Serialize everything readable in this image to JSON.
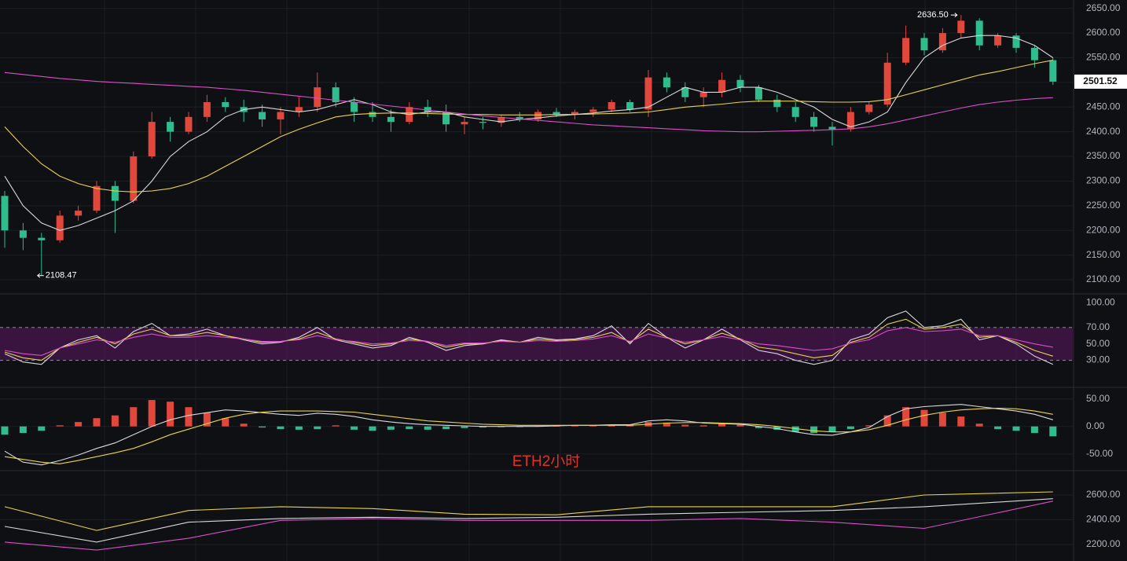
{
  "chart_data": [
    {
      "type": "candlestick",
      "up_color": "#e2473b",
      "down_color": "#2fbd8e",
      "grid": true,
      "ylim": [
        2073,
        2667
      ],
      "yticks": [
        {
          "value": 2650,
          "label": "2650.00"
        },
        {
          "value": 2600,
          "label": "2600.00"
        },
        {
          "value": 2550,
          "label": "2550.00"
        },
        {
          "value": 2500,
          "label": "2500.00"
        },
        {
          "value": 2450,
          "label": "2450.00"
        },
        {
          "value": 2400,
          "label": "2400.00"
        },
        {
          "value": 2350,
          "label": "2350.00"
        },
        {
          "value": 2300,
          "label": "2300.00"
        },
        {
          "value": 2250,
          "label": "2250.00"
        },
        {
          "value": 2200,
          "label": "2200.00"
        },
        {
          "value": 2150,
          "label": "2150.00"
        },
        {
          "value": 2100,
          "label": "2100.00"
        }
      ],
      "candles": [
        [
          2270,
          2280,
          2165,
          2200
        ],
        [
          2200,
          2215,
          2160,
          2185
        ],
        [
          2185,
          2195,
          2108.47,
          2180
        ],
        [
          2180,
          2240,
          2175,
          2230
        ],
        [
          2230,
          2250,
          2220,
          2240
        ],
        [
          2240,
          2300,
          2235,
          2290
        ],
        [
          2290,
          2300,
          2195,
          2260
        ],
        [
          2260,
          2360,
          2255,
          2350
        ],
        [
          2350,
          2440,
          2345,
          2420
        ],
        [
          2420,
          2430,
          2380,
          2400
        ],
        [
          2400,
          2440,
          2395,
          2430
        ],
        [
          2430,
          2475,
          2420,
          2460
        ],
        [
          2460,
          2470,
          2440,
          2450
        ],
        [
          2450,
          2465,
          2420,
          2440
        ],
        [
          2440,
          2455,
          2410,
          2425
        ],
        [
          2425,
          2450,
          2395,
          2440
        ],
        [
          2440,
          2470,
          2430,
          2450
        ],
        [
          2450,
          2520,
          2440,
          2490
        ],
        [
          2490,
          2500,
          2450,
          2460
        ],
        [
          2460,
          2470,
          2420,
          2440
        ],
        [
          2440,
          2460,
          2420,
          2430
        ],
        [
          2430,
          2445,
          2400,
          2420
        ],
        [
          2420,
          2460,
          2415,
          2450
        ],
        [
          2450,
          2465,
          2430,
          2440
        ],
        [
          2440,
          2455,
          2400,
          2415
        ],
        [
          2415,
          2430,
          2395,
          2420
        ],
        [
          2420,
          2430,
          2405,
          2418
        ],
        [
          2418,
          2435,
          2410,
          2430
        ],
        [
          2430,
          2440,
          2420,
          2425
        ],
        [
          2425,
          2445,
          2420,
          2440
        ],
        [
          2440,
          2448,
          2430,
          2435
        ],
        [
          2435,
          2445,
          2425,
          2440
        ],
        [
          2440,
          2450,
          2430,
          2445
        ],
        [
          2445,
          2465,
          2440,
          2460
        ],
        [
          2460,
          2465,
          2440,
          2445
        ],
        [
          2445,
          2525,
          2430,
          2510
        ],
        [
          2510,
          2520,
          2480,
          2490
        ],
        [
          2490,
          2500,
          2460,
          2470
        ],
        [
          2470,
          2490,
          2450,
          2480
        ],
        [
          2480,
          2520,
          2470,
          2505
        ],
        [
          2505,
          2515,
          2480,
          2490
        ],
        [
          2490,
          2495,
          2460,
          2465
        ],
        [
          2465,
          2475,
          2440,
          2450
        ],
        [
          2450,
          2460,
          2420,
          2430
        ],
        [
          2430,
          2440,
          2400,
          2410
        ],
        [
          2410,
          2420,
          2372,
          2405
        ],
        [
          2405,
          2450,
          2400,
          2440
        ],
        [
          2440,
          2460,
          2435,
          2455
        ],
        [
          2455,
          2560,
          2450,
          2540
        ],
        [
          2540,
          2615,
          2535,
          2590
        ],
        [
          2590,
          2600,
          2555,
          2565
        ],
        [
          2565,
          2610,
          2560,
          2600
        ],
        [
          2600,
          2636.5,
          2590,
          2625
        ],
        [
          2625,
          2630,
          2565,
          2575
        ],
        [
          2575,
          2600,
          2570,
          2595
        ],
        [
          2595,
          2600,
          2560,
          2570
        ],
        [
          2570,
          2575,
          2530,
          2545
        ],
        [
          2545,
          2550,
          2495,
          2501.52
        ]
      ],
      "series": [
        {
          "color": "#d9d9d9",
          "values": [
            2310,
            2250,
            2215,
            2200,
            2210,
            2225,
            2240,
            2260,
            2300,
            2350,
            2380,
            2400,
            2430,
            2445,
            2450,
            2445,
            2440,
            2445,
            2455,
            2465,
            2455,
            2440,
            2435,
            2440,
            2440,
            2430,
            2425,
            2420,
            2425,
            2428,
            2432,
            2435,
            2438,
            2442,
            2445,
            2450,
            2470,
            2490,
            2480,
            2480,
            2490,
            2490,
            2480,
            2465,
            2450,
            2425,
            2410,
            2420,
            2440,
            2500,
            2550,
            2575,
            2590,
            2595,
            2595,
            2590,
            2575,
            2550
          ]
        },
        {
          "color": "#e8d44d",
          "values": [
            2410,
            2370,
            2335,
            2310,
            2295,
            2285,
            2280,
            2278,
            2280,
            2285,
            2295,
            2310,
            2330,
            2350,
            2370,
            2390,
            2405,
            2418,
            2430,
            2435,
            2437,
            2438,
            2438,
            2437,
            2436,
            2435,
            2435,
            2434,
            2434,
            2434,
            2435,
            2435,
            2436,
            2437,
            2438,
            2440,
            2445,
            2450,
            2453,
            2456,
            2460,
            2462,
            2462,
            2462,
            2461,
            2460,
            2460,
            2461,
            2465,
            2475,
            2485,
            2495,
            2505,
            2515,
            2522,
            2530,
            2538,
            2545
          ]
        },
        {
          "color": "#d94fc7",
          "values": [
            2520,
            2516,
            2512,
            2508,
            2505,
            2502,
            2500,
            2498,
            2496,
            2494,
            2492,
            2490,
            2487,
            2484,
            2480,
            2476,
            2472,
            2468,
            2464,
            2460,
            2456,
            2452,
            2448,
            2444,
            2440,
            2436,
            2432,
            2429,
            2426,
            2423,
            2420,
            2417,
            2414,
            2412,
            2410,
            2408,
            2406,
            2404,
            2402,
            2401,
            2400,
            2400,
            2401,
            2402,
            2403,
            2404,
            2406,
            2410,
            2416,
            2424,
            2432,
            2440,
            2448,
            2455,
            2460,
            2464,
            2467,
            2469
          ]
        }
      ],
      "annotations": [
        {
          "x": 52,
          "value": 2636.5,
          "label": "2636.50"
        },
        {
          "x": 2,
          "value": 2108.47,
          "label": "2108.47"
        }
      ],
      "last_price": 2501.52
    },
    {
      "type": "line",
      "grid": false,
      "ylim": [
        -2,
        110
      ],
      "band": [
        30,
        70
      ],
      "band_color": "#6a1b73",
      "yticks": [
        {
          "value": 100,
          "label": "100.00"
        },
        {
          "value": 70,
          "label": "70.00"
        },
        {
          "value": 50,
          "label": "50.00"
        },
        {
          "value": 30,
          "label": "30.00"
        }
      ],
      "series": [
        {
          "color": "#d9d9d9",
          "values": [
            38,
            28,
            25,
            45,
            55,
            60,
            45,
            65,
            75,
            60,
            62,
            68,
            60,
            55,
            50,
            52,
            58,
            70,
            55,
            50,
            45,
            48,
            58,
            52,
            42,
            48,
            50,
            55,
            52,
            58,
            55,
            56,
            60,
            72,
            50,
            75,
            58,
            45,
            55,
            68,
            55,
            42,
            38,
            30,
            25,
            30,
            55,
            62,
            82,
            90,
            70,
            72,
            80,
            55,
            60,
            50,
            35,
            25
          ]
        },
        {
          "color": "#e8d44d",
          "values": [
            40,
            33,
            30,
            45,
            52,
            58,
            50,
            62,
            68,
            60,
            60,
            64,
            60,
            56,
            52,
            53,
            56,
            64,
            56,
            52,
            48,
            50,
            56,
            53,
            46,
            50,
            50,
            54,
            52,
            56,
            54,
            55,
            58,
            64,
            52,
            68,
            58,
            50,
            55,
            63,
            56,
            46,
            43,
            38,
            33,
            36,
            52,
            58,
            74,
            80,
            68,
            70,
            74,
            58,
            60,
            52,
            42,
            35
          ]
        },
        {
          "color": "#d94fc7",
          "values": [
            42,
            38,
            36,
            45,
            50,
            55,
            52,
            58,
            62,
            58,
            58,
            60,
            58,
            56,
            53,
            53,
            55,
            60,
            55,
            53,
            50,
            51,
            54,
            53,
            48,
            51,
            51,
            53,
            52,
            54,
            53,
            54,
            56,
            60,
            53,
            62,
            57,
            52,
            55,
            59,
            55,
            50,
            48,
            45,
            42,
            44,
            51,
            55,
            66,
            70,
            65,
            66,
            68,
            60,
            60,
            55,
            50,
            46
          ]
        }
      ]
    },
    {
      "type": "bar",
      "grid": true,
      "ylim": [
        -79,
        71
      ],
      "up_color": "#e2473b",
      "down_color": "#2fbd8e",
      "yticks": [
        {
          "value": 50,
          "label": "50.00"
        },
        {
          "value": 0,
          "label": "0.00"
        },
        {
          "value": -50,
          "label": "-50.00"
        }
      ],
      "values": [
        -15,
        -12,
        -8,
        2,
        8,
        15,
        20,
        35,
        48,
        45,
        35,
        25,
        15,
        5,
        -2,
        -5,
        -6,
        -5,
        2,
        -6,
        -8,
        -6,
        -5,
        -6,
        -5,
        -3,
        -2,
        -1,
        0,
        1,
        1,
        2,
        2,
        3,
        2,
        8,
        7,
        3,
        2,
        5,
        3,
        -3,
        -6,
        -10,
        -12,
        -10,
        -5,
        2,
        20,
        35,
        30,
        25,
        18,
        5,
        -5,
        -8,
        -12,
        -18
      ],
      "series": [
        {
          "color": "#d9d9d9",
          "values": [
            -45,
            -65,
            -70,
            -62,
            -52,
            -40,
            -30,
            -15,
            0,
            12,
            20,
            25,
            30,
            28,
            25,
            22,
            20,
            24,
            22,
            18,
            12,
            8,
            5,
            3,
            2,
            1,
            0,
            0,
            0,
            0,
            1,
            2,
            2,
            3,
            3,
            10,
            12,
            10,
            6,
            5,
            4,
            0,
            -4,
            -10,
            -15,
            -16,
            -10,
            -2,
            18,
            32,
            36,
            38,
            40,
            36,
            32,
            28,
            22,
            12
          ]
        },
        {
          "color": "#e8d44d",
          "values": [
            -55,
            -60,
            -65,
            -68,
            -62,
            -55,
            -48,
            -40,
            -28,
            -15,
            -5,
            5,
            15,
            22,
            26,
            28,
            28,
            28,
            27,
            26,
            22,
            18,
            14,
            10,
            8,
            6,
            4,
            3,
            2,
            2,
            2,
            2,
            2,
            2,
            2,
            4,
            6,
            7,
            7,
            6,
            5,
            3,
            0,
            -4,
            -8,
            -10,
            -10,
            -6,
            2,
            12,
            20,
            26,
            30,
            32,
            33,
            32,
            28,
            22
          ]
        }
      ],
      "annotation": "ETH2小时"
    },
    {
      "type": "line",
      "grid": true,
      "ylim": [
        2067,
        2790
      ],
      "yticks": [
        {
          "value": 2600,
          "label": "2600.00"
        },
        {
          "value": 2400,
          "label": "2400.00"
        },
        {
          "value": 2200,
          "label": "2200.00"
        }
      ],
      "x": [
        0,
        5,
        10,
        15,
        20,
        25,
        30,
        35,
        40,
        45,
        50,
        57
      ],
      "series": [
        {
          "color": "#e8d44d",
          "values": [
            2505,
            2314,
            2475,
            2505,
            2490,
            2445,
            2440,
            2505,
            2505,
            2505,
            2600,
            2625
          ]
        },
        {
          "color": "#d9d9d9",
          "values": [
            2346,
            2220,
            2380,
            2410,
            2420,
            2410,
            2420,
            2445,
            2460,
            2475,
            2505,
            2570
          ]
        },
        {
          "color": "#d94fc7",
          "values": [
            2220,
            2155,
            2250,
            2395,
            2410,
            2395,
            2395,
            2395,
            2410,
            2380,
            2330,
            2550
          ]
        }
      ]
    }
  ]
}
